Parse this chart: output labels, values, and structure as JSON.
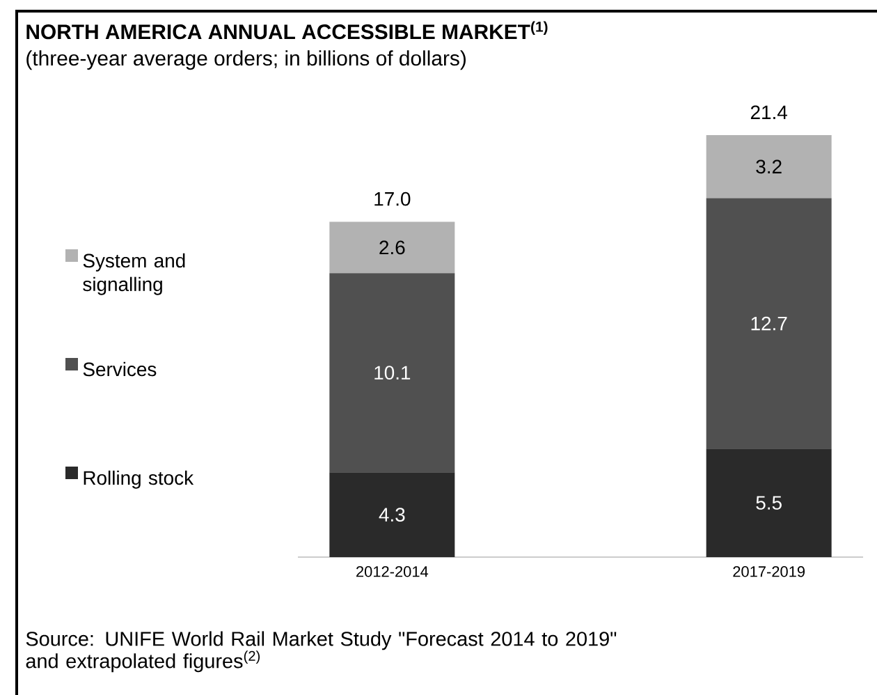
{
  "chart_data": {
    "type": "bar",
    "title": "NORTH AMERICA ANNUAL ACCESSIBLE MARKET$^{(1)}$",
    "subtitle": "(three-year average orders; in billions of dollars)",
    "categories": [
      "2012-2014",
      "2017-2019"
    ],
    "series": [
      {
        "name": "Rolling stock",
        "color": "#2a2a2a",
        "values": [
          4.3,
          5.5
        ]
      },
      {
        "name": "Services",
        "color": "#505050",
        "values": [
          10.1,
          12.7
        ]
      },
      {
        "name": "System and signalling",
        "color": "#b2b2b2",
        "values": [
          2.6,
          3.2
        ]
      }
    ],
    "stacked": true,
    "data_labels": true,
    "totals": [
      "17.0",
      "21.4"
    ],
    "legend": "left",
    "annotations": [
      "Source: UNIFE World Rail Market Study \"Forecast 2014 to 2019\" and extrapolated figures$^{(2)}$"
    ]
  }
}
